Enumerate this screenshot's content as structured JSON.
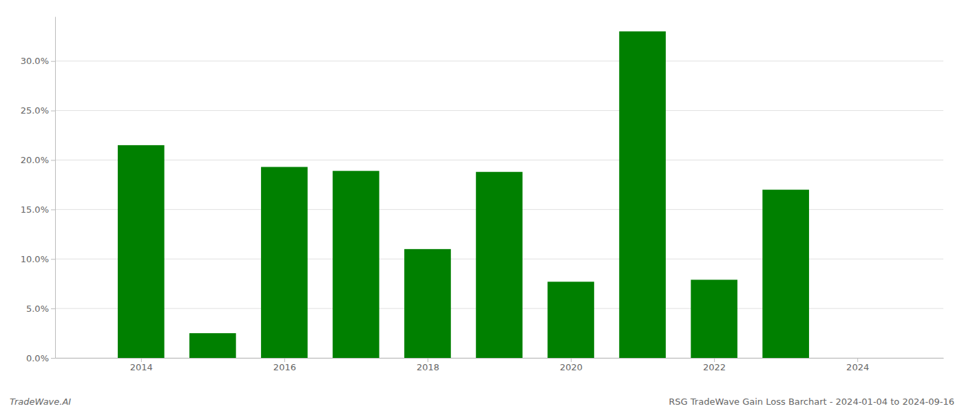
{
  "chart_data": {
    "type": "bar",
    "title": "RSG TradeWave Gain Loss Barchart - 2024-01-04 to 2024-09-16",
    "annotations": [
      "TradeWave.AI"
    ],
    "x": [
      2014,
      2015,
      2016,
      2017,
      2018,
      2019,
      2020,
      2021,
      2022,
      2023,
      2024
    ],
    "values": [
      0.215,
      0.025,
      0.193,
      0.189,
      0.11,
      0.188,
      0.077,
      0.33,
      0.079,
      0.17,
      0.0
    ],
    "color": "#008000",
    "xlim": [
      2012.8,
      2025.2
    ],
    "xticks": [
      2014,
      2016,
      2018,
      2020,
      2022,
      2024
    ],
    "ylim": [
      0.0,
      0.345
    ],
    "yticks": [
      {
        "value": 0.0,
        "label": "0.0%"
      },
      {
        "value": 0.05,
        "label": "5.0%"
      },
      {
        "value": 0.1,
        "label": "10.0%"
      },
      {
        "value": 0.15,
        "label": "15.0%"
      },
      {
        "value": 0.2,
        "label": "20.0%"
      },
      {
        "value": 0.25,
        "label": "25.0%"
      },
      {
        "value": 0.3,
        "label": "30.0%"
      }
    ],
    "grid": true
  }
}
